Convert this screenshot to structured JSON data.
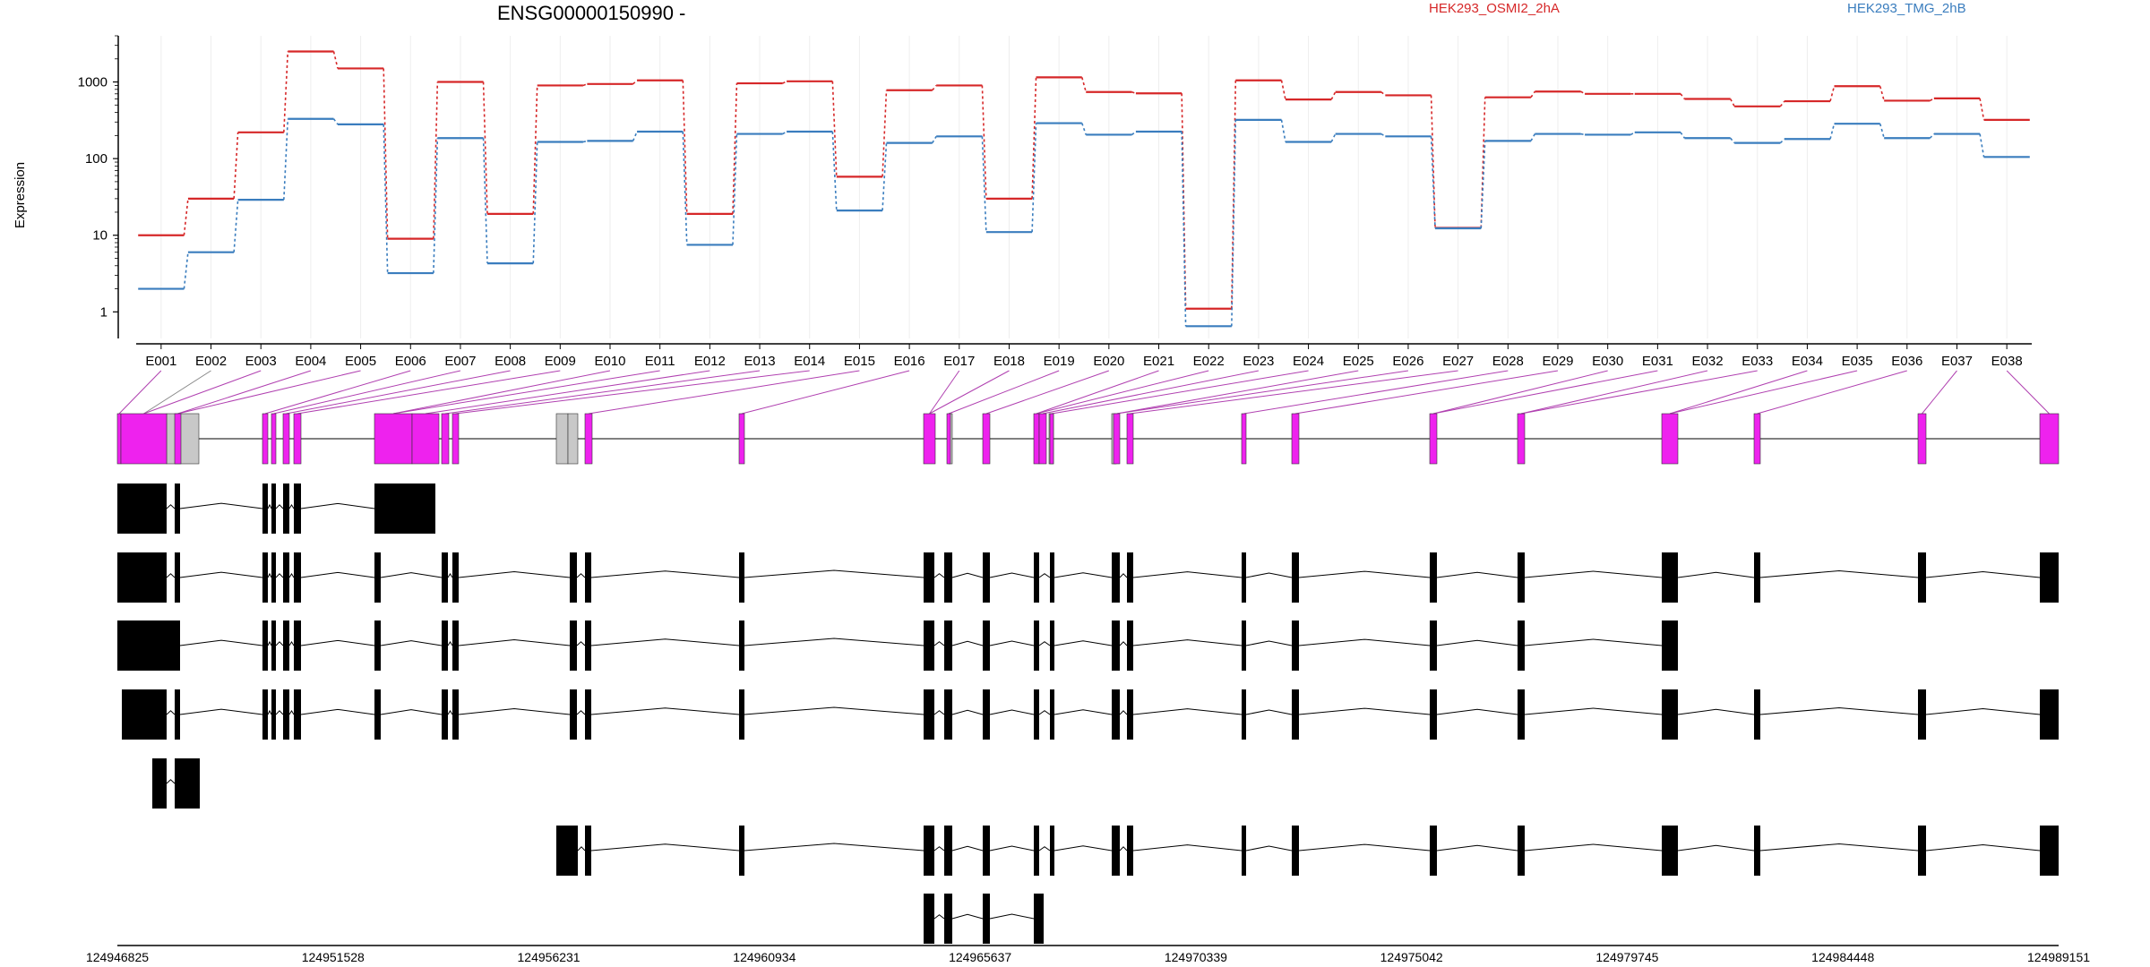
{
  "chart_data": {
    "type": "line",
    "title": "ENSG00000150990 -",
    "ylabel": "Expression",
    "yscale": "log",
    "ylim": [
      0.45,
      4000
    ],
    "yticks": [
      1,
      10,
      100,
      1000
    ],
    "ytick_labels": [
      "1",
      "10",
      "100",
      "1000"
    ],
    "categories": [
      "E001",
      "E002",
      "E003",
      "E004",
      "E005",
      "E006",
      "E007",
      "E008",
      "E009",
      "E010",
      "E011",
      "E012",
      "E013",
      "E014",
      "E015",
      "E016",
      "E017",
      "E018",
      "E019",
      "E020",
      "E021",
      "E022",
      "E023",
      "E024",
      "E025",
      "E026",
      "E027",
      "E028",
      "E029",
      "E030",
      "E031",
      "E032",
      "E033",
      "E034",
      "E035",
      "E036",
      "E037",
      "E038"
    ],
    "legend_position": "top",
    "series": [
      {
        "name": "HEK293_OSMI2_2hA",
        "color": "#d62728",
        "values": [
          10,
          30,
          220,
          2500,
          1500,
          9,
          1000,
          19,
          900,
          940,
          1050,
          19,
          960,
          1020,
          58,
          780,
          900,
          30,
          1150,
          740,
          710,
          1.1,
          1050,
          590,
          740,
          670,
          12.5,
          630,
          750,
          700,
          700,
          600,
          480,
          560,
          880,
          570,
          610,
          320
        ]
      },
      {
        "name": "HEK293_TMG_2hB",
        "color": "#3a7dbe",
        "values": [
          2,
          6,
          29,
          330,
          280,
          3.2,
          185,
          4.3,
          165,
          170,
          225,
          7.5,
          210,
          225,
          21,
          160,
          195,
          11,
          290,
          205,
          225,
          0.65,
          320,
          165,
          210,
          195,
          12.3,
          170,
          210,
          205,
          220,
          185,
          160,
          180,
          285,
          185,
          210,
          105
        ]
      }
    ],
    "coordinate_axis": {
      "ticks": [
        "124946825",
        "124951528",
        "124956231",
        "124960934",
        "124965637",
        "124970339",
        "124975042",
        "124979745",
        "124984448",
        "124989151"
      ]
    },
    "exon_colors": {
      "assayed": "#ee22ee",
      "other": "#c8c8c8",
      "transcript": "#000000"
    }
  }
}
